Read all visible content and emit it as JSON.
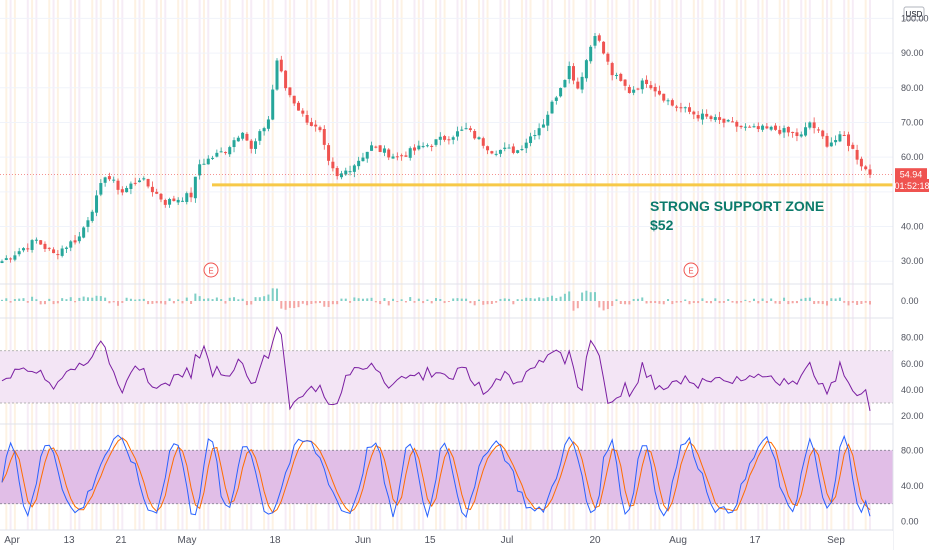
{
  "chart_data": {
    "type": "candlestick",
    "currency_badge": "USD",
    "price_axis_ticks": [
      "100.00",
      "90.00",
      "80.00",
      "70.00",
      "60.00",
      "40.00",
      "30.00"
    ],
    "price_ylim": [
      24,
      103
    ],
    "last_price_label": "54.94",
    "countdown_label": "01:52:18",
    "last_price": 54.94,
    "support_level": 52,
    "annotation_lines": [
      "STRONG SUPPORT ZONE",
      "$52"
    ],
    "earnings_marker": "E",
    "x_tick_labels": [
      "Apr",
      "13",
      "21",
      "May",
      "18",
      "Jun",
      "15",
      "Jul",
      "20",
      "Aug",
      "17",
      "Sep"
    ],
    "price_keypoints": [
      {
        "t": 0,
        "v": 30
      },
      {
        "t": 8,
        "v": 36
      },
      {
        "t": 12,
        "v": 32
      },
      {
        "t": 18,
        "v": 37
      },
      {
        "t": 22,
        "v": 48
      },
      {
        "t": 24,
        "v": 55
      },
      {
        "t": 28,
        "v": 50
      },
      {
        "t": 32,
        "v": 54
      },
      {
        "t": 38,
        "v": 47
      },
      {
        "t": 44,
        "v": 49
      },
      {
        "t": 46,
        "v": 58
      },
      {
        "t": 52,
        "v": 62
      },
      {
        "t": 56,
        "v": 68
      },
      {
        "t": 58,
        "v": 62
      },
      {
        "t": 62,
        "v": 71
      },
      {
        "t": 64,
        "v": 88
      },
      {
        "t": 66,
        "v": 80
      },
      {
        "t": 70,
        "v": 72
      },
      {
        "t": 74,
        "v": 67
      },
      {
        "t": 76,
        "v": 58
      },
      {
        "t": 78,
        "v": 54
      },
      {
        "t": 82,
        "v": 58
      },
      {
        "t": 86,
        "v": 63
      },
      {
        "t": 92,
        "v": 60
      },
      {
        "t": 100,
        "v": 64
      },
      {
        "t": 108,
        "v": 68
      },
      {
        "t": 114,
        "v": 62
      },
      {
        "t": 120,
        "v": 62
      },
      {
        "t": 126,
        "v": 70
      },
      {
        "t": 132,
        "v": 86
      },
      {
        "t": 134,
        "v": 80
      },
      {
        "t": 138,
        "v": 96
      },
      {
        "t": 142,
        "v": 84
      },
      {
        "t": 146,
        "v": 79
      },
      {
        "t": 150,
        "v": 82
      },
      {
        "t": 156,
        "v": 75
      },
      {
        "t": 162,
        "v": 72
      },
      {
        "t": 168,
        "v": 70
      },
      {
        "t": 174,
        "v": 68
      },
      {
        "t": 180,
        "v": 68
      },
      {
        "t": 186,
        "v": 66
      },
      {
        "t": 188,
        "v": 70
      },
      {
        "t": 192,
        "v": 64
      },
      {
        "t": 196,
        "v": 66
      },
      {
        "t": 200,
        "v": 58
      },
      {
        "t": 202,
        "v": 54.94
      }
    ],
    "volume_panel": {
      "axis_ticks": [
        "0.00"
      ]
    },
    "rsi_panel": {
      "axis_ticks": [
        "80.00",
        "60.00",
        "40.00",
        "20.00"
      ],
      "band": [
        30,
        70
      ],
      "ylim": [
        17,
        92
      ],
      "color": "#7b1fa2"
    },
    "stoch_panel": {
      "axis_ticks": [
        "80.00",
        "40.00",
        "0.00"
      ],
      "band": [
        20,
        80
      ],
      "ylim": [
        -5,
        105
      ],
      "colors": [
        "#2962ff",
        "#ff6d00"
      ]
    },
    "colors": {
      "up": "#26a69a",
      "down": "#ef5350",
      "support": "#f7c948",
      "price_badge": "#ef5350",
      "band_fill": "#e1bee7"
    }
  }
}
